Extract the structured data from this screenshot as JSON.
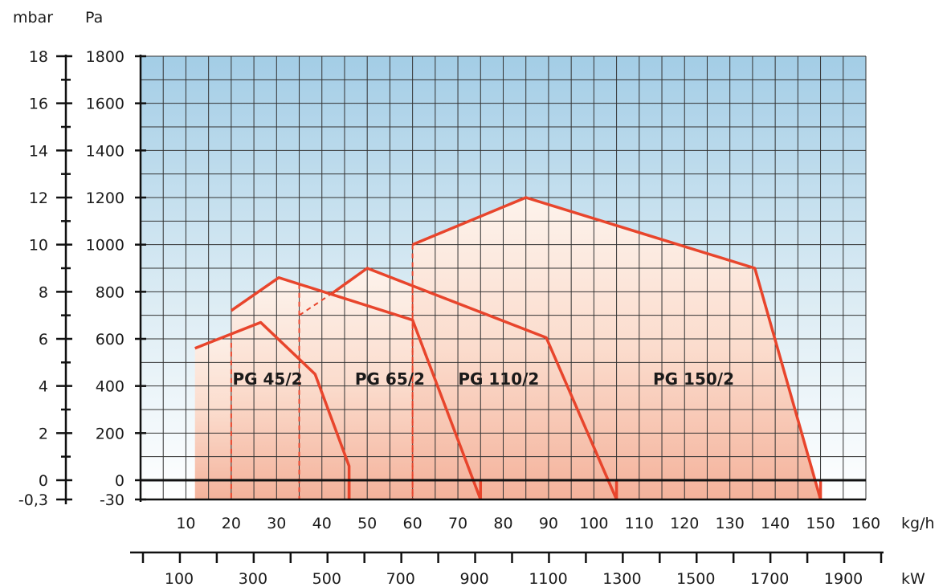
{
  "chart_data": {
    "type": "area",
    "title": "",
    "x_axis_primary": {
      "unit": "kg/h",
      "range": [
        0,
        160
      ],
      "ticks": [
        10,
        20,
        30,
        40,
        50,
        60,
        70,
        80,
        90,
        100,
        110,
        120,
        130,
        140,
        150,
        160
      ]
    },
    "x_axis_secondary": {
      "unit": "kW",
      "ticks": [
        "100",
        "300",
        "500",
        "700",
        "900",
        "1100",
        "1300",
        "1500",
        "1700",
        "1900"
      ]
    },
    "y_axis_left": {
      "unit": "mbar",
      "ticks": [
        {
          "label": "18",
          "value": 1800
        },
        {
          "label": "16",
          "value": 1600
        },
        {
          "label": "14",
          "value": 1400
        },
        {
          "label": "12",
          "value": 1200
        },
        {
          "label": "10",
          "value": 1000
        },
        {
          "label": "8",
          "value": 800
        },
        {
          "label": "6",
          "value": 600
        },
        {
          "label": "4",
          "value": 400
        },
        {
          "label": "2",
          "value": 200
        },
        {
          "label": "0",
          "value": 0
        },
        {
          "label": "-0,3",
          "value": -30
        }
      ]
    },
    "y_axis_right": {
      "unit": "Pa",
      "range": [
        -30,
        1800
      ],
      "ticks": [
        {
          "label": "1800",
          "value": 1800
        },
        {
          "label": "1600",
          "value": 1600
        },
        {
          "label": "1400",
          "value": 1400
        },
        {
          "label": "1200",
          "value": 1200
        },
        {
          "label": "1000",
          "value": 1000
        },
        {
          "label": "800",
          "value": 800
        },
        {
          "label": "600",
          "value": 600
        },
        {
          "label": "400",
          "value": 400
        },
        {
          "label": "200",
          "value": 200
        },
        {
          "label": "0",
          "value": 0
        },
        {
          "label": "-30",
          "value": -30
        }
      ]
    },
    "grid": true,
    "series": [
      {
        "name": "PG 45/2",
        "points": [
          [
            12,
            560
          ],
          [
            26.5,
            670
          ],
          [
            38.5,
            450
          ],
          [
            46,
            60
          ],
          [
            46,
            -30
          ]
        ],
        "dash_x": 20,
        "label_at": [
          28,
          430
        ]
      },
      {
        "name": "PG 65/2",
        "points": [
          [
            20,
            720
          ],
          [
            30.5,
            860
          ],
          [
            60,
            680
          ],
          [
            75,
            -30
          ]
        ],
        "dash_x": 35,
        "label_at": [
          55,
          430
        ]
      },
      {
        "name": "PG 110/2",
        "points": [
          [
            35,
            700
          ],
          [
            50,
            900
          ],
          [
            89.5,
            605
          ],
          [
            105,
            -30
          ]
        ],
        "dash_x": 60,
        "label_at": [
          79,
          430
        ]
      },
      {
        "name": "PG 150/2",
        "points": [
          [
            60,
            1000
          ],
          [
            85,
            1200
          ],
          [
            135.5,
            900
          ],
          [
            150,
            -30
          ]
        ],
        "dash_x": null,
        "label_at": [
          122,
          430
        ]
      }
    ],
    "colors": {
      "curve": "#e8452c",
      "background_top": "#a3cde6",
      "background_bottom": "#ffffff",
      "region_top": "#fdf0e8",
      "region_bottom": "#f4b9a3"
    }
  }
}
